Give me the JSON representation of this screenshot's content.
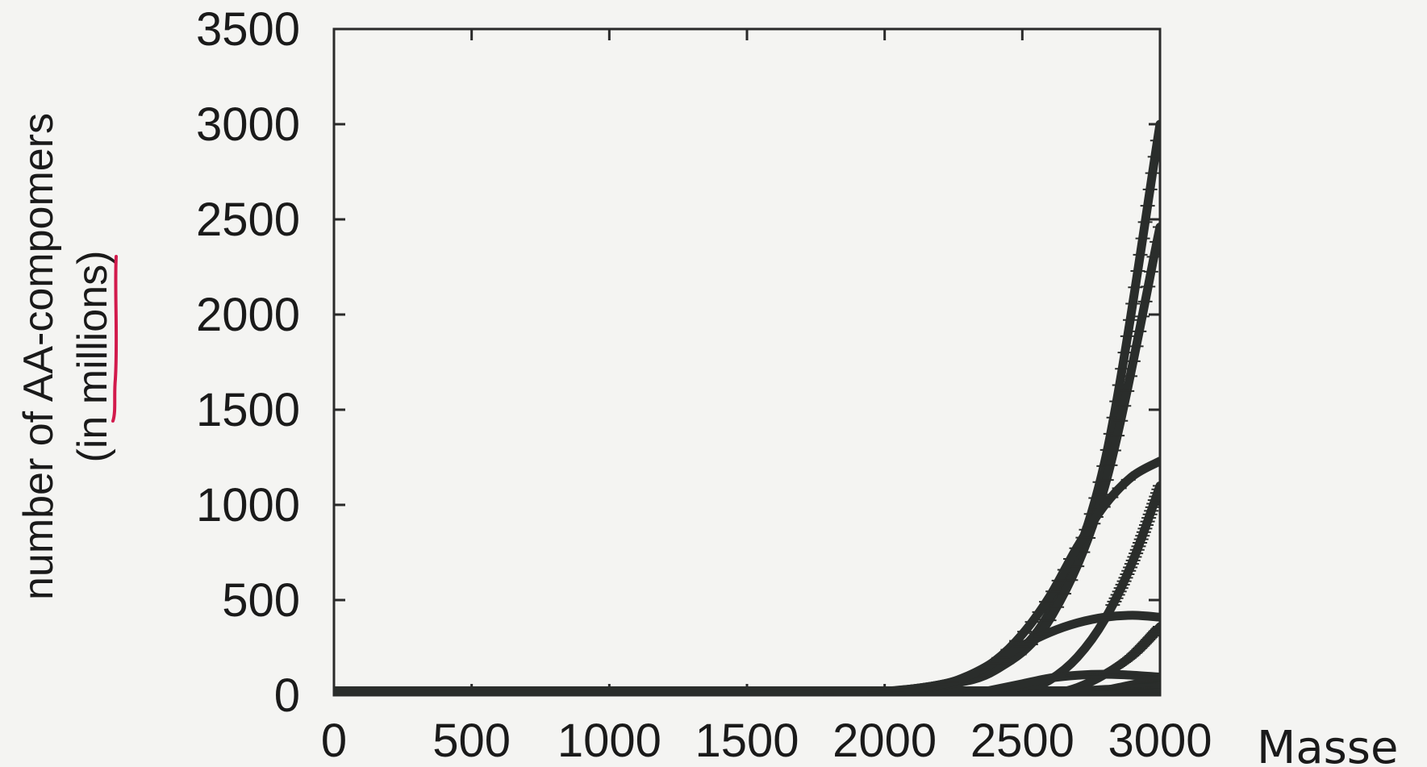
{
  "chart_data": {
    "type": "line",
    "title": "",
    "xlabel": "Masse",
    "ylabel": "number of AA-compomers",
    "ylabel_sub": "(in millions)",
    "xlim": [
      0,
      3000
    ],
    "ylim": [
      0,
      3500
    ],
    "xticks": [
      "0",
      "500",
      "1000",
      "1500",
      "2000",
      "2500",
      "3000"
    ],
    "yticks": [
      "0",
      "500",
      "1000",
      "1500",
      "2000",
      "2500",
      "3000",
      "3500"
    ],
    "grid": false,
    "legend": "none",
    "line_color": "#2a2d2b",
    "series": [
      {
        "x": [
          0,
          1500,
          1800,
          2000,
          2200,
          2400,
          2600,
          2800,
          3000
        ],
        "values": [
          0,
          0,
          5,
          20,
          55,
          140,
          440,
          1230,
          3000
        ]
      },
      {
        "x": [
          0,
          1500,
          1800,
          2000,
          2200,
          2400,
          2600,
          2800,
          3000
        ],
        "values": [
          0,
          0,
          5,
          18,
          50,
          130,
          400,
          1100,
          2460
        ]
      },
      {
        "x": [
          0,
          1500,
          1800,
          2000,
          2200,
          2300,
          2400,
          2500,
          2600,
          2700,
          2800,
          2900,
          3000
        ],
        "values": [
          0,
          0,
          5,
          18,
          55,
          100,
          180,
          320,
          520,
          780,
          1000,
          1150,
          1230
        ]
      },
      {
        "x": [
          2400,
          2500,
          2600,
          2700,
          2800,
          2900,
          3000
        ],
        "values": [
          0,
          20,
          80,
          200,
          400,
          700,
          1100
        ]
      },
      {
        "x": [
          0,
          1500,
          1800,
          2000,
          2200,
          2300,
          2400,
          2500,
          2600,
          2700,
          2800,
          2900,
          3000
        ],
        "values": [
          0,
          0,
          5,
          18,
          55,
          100,
          175,
          260,
          330,
          380,
          410,
          420,
          410
        ]
      },
      {
        "x": [
          2600,
          2700,
          2800,
          2900,
          3000
        ],
        "values": [
          0,
          40,
          110,
          210,
          360
        ]
      },
      {
        "x": [
          2300,
          2400,
          2500,
          2600,
          2700,
          2800,
          2900,
          3000
        ],
        "values": [
          0,
          30,
          60,
          90,
          105,
          110,
          105,
          95
        ]
      },
      {
        "x": [
          2700,
          2800,
          2900,
          3000
        ],
        "values": [
          0,
          25,
          55,
          80
        ]
      },
      {
        "x": [
          2500,
          2600,
          2700,
          2800,
          2900,
          3000
        ],
        "values": [
          0,
          10,
          20,
          30,
          35,
          40
        ]
      }
    ]
  }
}
